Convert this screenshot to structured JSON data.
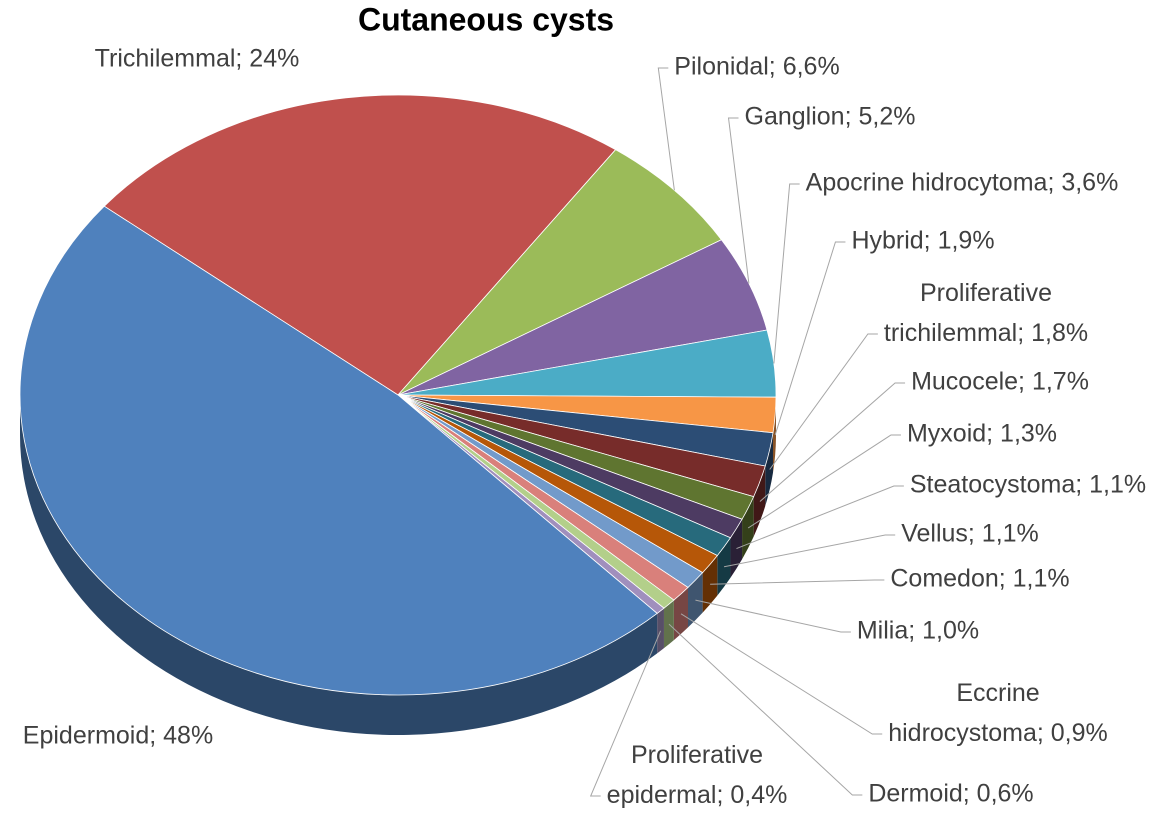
{
  "chart_data": {
    "type": "pie",
    "title": "Cutaneous cysts",
    "values": [
      24,
      6.6,
      5.2,
      3.6,
      1.9,
      1.8,
      1.7,
      1.3,
      1.1,
      1.1,
      1.1,
      1.0,
      0.9,
      0.6,
      0.4,
      48
    ],
    "value_labels": [
      "Trichilemmal; 24%",
      "Pilonidal; 6,6%",
      "Ganglion; 5,2%",
      "Apocrine hidrocytoma; 3,6%",
      "Hybrid; 1,9%",
      "Proliferative trichilemmal; 1,8%",
      "Mucocele; 1,7%",
      "Myxoid; 1,3%",
      "Steatocystoma; 1,1%",
      "Vellus; 1,1%",
      "Comedon; 1,1%",
      "Milia; 1,0%",
      "Eccrine hidrocystoma; 0,9%",
      "Dermoid; 0,6%",
      "Proliferative epidermal; 0,4%",
      "Epidermoid; 48%"
    ],
    "colors": [
      "#c0504d",
      "#9bbb59",
      "#8064a2",
      "#4bacc6",
      "#f79646",
      "#2c4d75",
      "#772c2a",
      "#5f7530",
      "#4d3b62",
      "#276a7c",
      "#b65708",
      "#729aca",
      "#d9807b",
      "#b3cf8a",
      "#a08fbd",
      "#4f81bd"
    ]
  }
}
